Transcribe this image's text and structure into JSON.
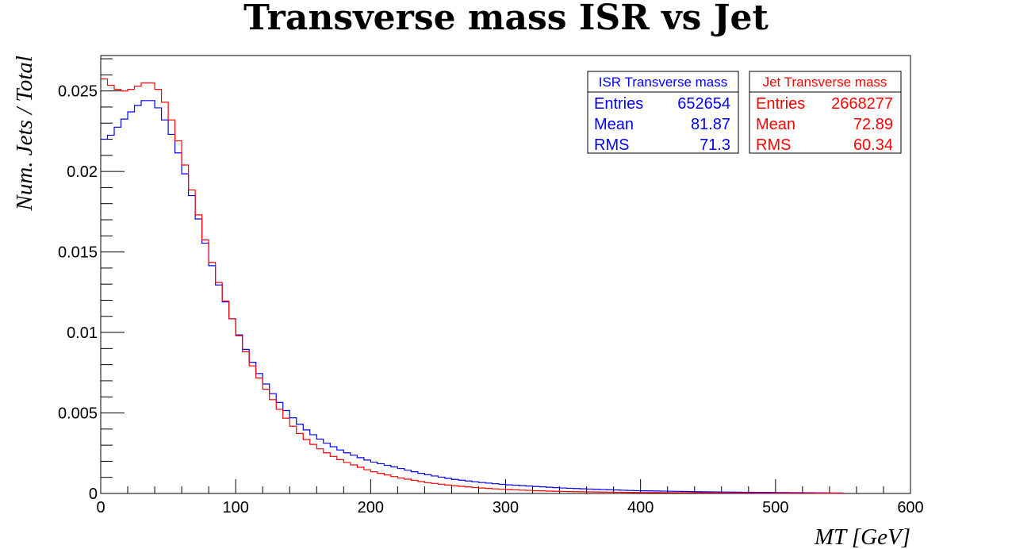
{
  "chart_data": {
    "type": "line",
    "title": "Transverse mass ISR vs Jet",
    "xlabel": "MT [GeV]",
    "ylabel": "Num. Jets / Total",
    "xlim": [
      0,
      600
    ],
    "ylim": [
      0,
      0.0272
    ],
    "grid": false,
    "x_ticks": [
      "0",
      "100",
      "200",
      "300",
      "400",
      "500",
      "600"
    ],
    "y_ticks": [
      "0",
      "0.005",
      "0.01",
      "0.015",
      "0.02",
      "0.025"
    ],
    "series": [
      {
        "name": "ISR Transverse mass",
        "color": "#0000ff",
        "stats": {
          "entries_label": "Entries",
          "entries": "652654",
          "mean_label": "Mean",
          "mean": "81.87",
          "rms_label": "RMS",
          "rms": "71.3"
        },
        "x": [
          0,
          5,
          10,
          15,
          20,
          25,
          30,
          35,
          40,
          45,
          50,
          55,
          60,
          65,
          70,
          75,
          80,
          85,
          90,
          95,
          100,
          110,
          120,
          130,
          140,
          150,
          160,
          170,
          180,
          190,
          200,
          220,
          240,
          260,
          280,
          300,
          320,
          340,
          360,
          380,
          400,
          450,
          500,
          550
        ],
        "y": [
          0.022,
          0.022,
          0.0225,
          0.023,
          0.0235,
          0.0239,
          0.0243,
          0.0245,
          0.0243,
          0.0236,
          0.0228,
          0.0218,
          0.0205,
          0.0192,
          0.0178,
          0.0163,
          0.0148,
          0.0135,
          0.0124,
          0.0114,
          0.0103,
          0.0085,
          0.0071,
          0.0059,
          0.0049,
          0.0041,
          0.0035,
          0.003,
          0.0026,
          0.0023,
          0.002,
          0.0016,
          0.0012,
          0.0009,
          0.0007,
          0.00055,
          0.00045,
          0.00035,
          0.00028,
          0.00022,
          0.00017,
          0.0001,
          6e-05,
          3e-05
        ]
      },
      {
        "name": "Jet Transverse mass",
        "color": "#ff0000",
        "stats": {
          "entries_label": "Entries",
          "entries": "2668277",
          "mean_label": "Mean",
          "mean": "72.89",
          "rms_label": "RMS",
          "rms": "60.34"
        },
        "x": [
          0,
          5,
          10,
          15,
          20,
          25,
          30,
          35,
          40,
          45,
          50,
          55,
          60,
          65,
          70,
          75,
          80,
          85,
          90,
          95,
          100,
          110,
          120,
          130,
          140,
          150,
          160,
          170,
          180,
          190,
          200,
          220,
          240,
          260,
          280,
          300,
          320,
          340,
          360,
          380,
          400,
          450,
          500,
          550
        ],
        "y": [
          0.026,
          0.0255,
          0.0252,
          0.025,
          0.025,
          0.0252,
          0.0254,
          0.0256,
          0.0254,
          0.0248,
          0.0238,
          0.0226,
          0.0212,
          0.0196,
          0.0181,
          0.0165,
          0.015,
          0.0137,
          0.0125,
          0.0114,
          0.0103,
          0.0083,
          0.0068,
          0.0055,
          0.0044,
          0.0035,
          0.0029,
          0.0024,
          0.002,
          0.0017,
          0.0014,
          0.001,
          0.0007,
          0.0005,
          0.00035,
          0.00025,
          0.00018,
          0.00013,
          0.0001,
          8e-05,
          6e-05,
          4e-05,
          2e-05,
          1e-05
        ]
      }
    ]
  }
}
